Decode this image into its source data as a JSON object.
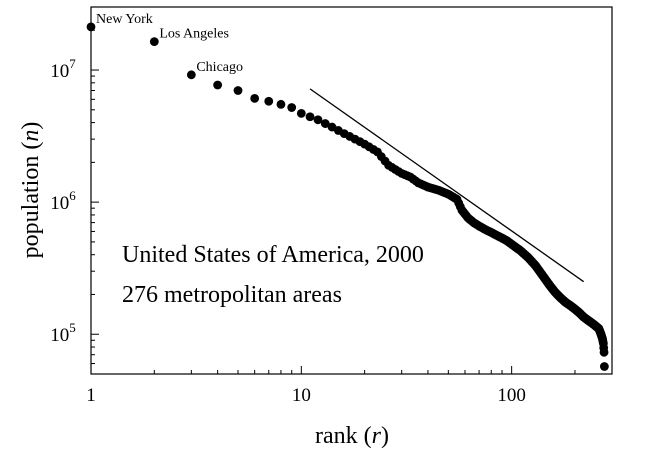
{
  "chart_data": {
    "type": "scatter",
    "scale": "log-log",
    "xlabel": {
      "main": "rank (",
      "var": "r",
      "close": ")"
    },
    "ylabel": {
      "main": "population (",
      "var": "n",
      "close": ")"
    },
    "xlim": [
      1,
      300
    ],
    "ylim": [
      50000,
      30000000
    ],
    "x_ticks": [
      {
        "value": 1,
        "label": "1"
      },
      {
        "value": 10,
        "label": "10"
      },
      {
        "value": 100,
        "label": "100"
      }
    ],
    "y_ticks": [
      {
        "value": 100000,
        "base": "10",
        "exp": "5"
      },
      {
        "value": 1000000,
        "base": "10",
        "exp": "6"
      },
      {
        "value": 10000000,
        "base": "10",
        "exp": "7"
      }
    ],
    "annotation_lines": [
      "United States of America, 2000",
      "276 metropolitan areas"
    ],
    "labeled_points": [
      {
        "rank": 1,
        "population": 21200000,
        "label": "New York"
      },
      {
        "rank": 2,
        "population": 16400000,
        "label": "Los Angeles"
      },
      {
        "rank": 3,
        "population": 9200000,
        "label": "Chicago"
      }
    ],
    "points": [
      [
        1,
        21200000
      ],
      [
        2,
        16400000
      ],
      [
        3,
        9200000
      ],
      [
        4,
        7700000
      ],
      [
        5,
        7000000
      ],
      [
        6,
        6100000
      ],
      [
        7,
        5800000
      ],
      [
        8,
        5500000
      ],
      [
        9,
        5200000
      ],
      [
        10,
        4700000
      ],
      [
        12,
        4200000
      ],
      [
        14,
        3700000
      ],
      [
        16,
        3300000
      ],
      [
        18,
        3000000
      ],
      [
        20,
        2750000
      ],
      [
        23,
        2400000
      ],
      [
        26,
        1900000
      ],
      [
        30,
        1650000
      ],
      [
        33,
        1550000
      ],
      [
        36,
        1400000
      ],
      [
        40,
        1300000
      ],
      [
        45,
        1230000
      ],
      [
        50,
        1150000
      ],
      [
        55,
        1050000
      ],
      [
        58,
        870000
      ],
      [
        62,
        760000
      ],
      [
        66,
        700000
      ],
      [
        70,
        660000
      ],
      [
        75,
        620000
      ],
      [
        80,
        590000
      ],
      [
        85,
        560000
      ],
      [
        90,
        535000
      ],
      [
        95,
        510000
      ],
      [
        100,
        480000
      ],
      [
        110,
        430000
      ],
      [
        120,
        380000
      ],
      [
        130,
        330000
      ],
      [
        140,
        280000
      ],
      [
        150,
        240000
      ],
      [
        160,
        210000
      ],
      [
        170,
        190000
      ],
      [
        180,
        175000
      ],
      [
        190,
        165000
      ],
      [
        200,
        155000
      ],
      [
        210,
        145000
      ],
      [
        220,
        135000
      ],
      [
        230,
        128000
      ],
      [
        240,
        122000
      ],
      [
        250,
        116000
      ],
      [
        260,
        110000
      ],
      [
        266,
        100000
      ],
      [
        270,
        93000
      ],
      [
        273,
        85000
      ],
      [
        275,
        73000
      ],
      [
        276,
        57000
      ]
    ],
    "reference_line": {
      "from": [
        11,
        7200000
      ],
      "to": [
        220,
        250000
      ]
    }
  }
}
